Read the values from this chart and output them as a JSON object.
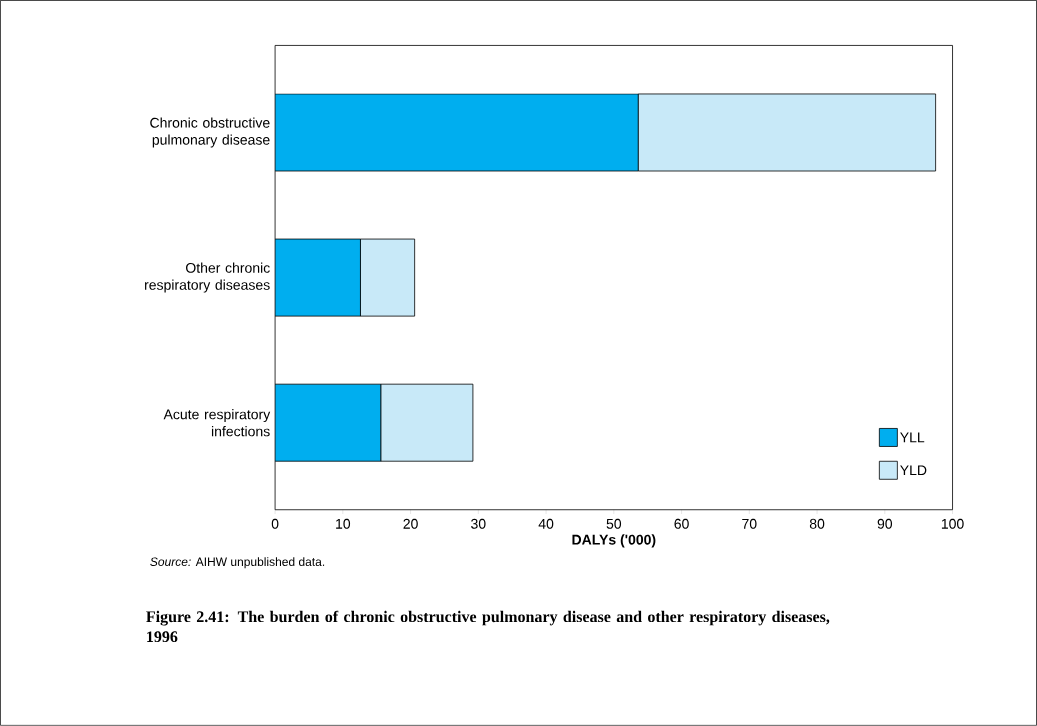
{
  "chart_data": {
    "type": "bar",
    "orientation": "horizontal",
    "stacked": true,
    "title": "Figure 2.41: The burden of chronic obstructive pulmonary disease and other respiratory diseases, 1996",
    "xlabel": "DALYs ('000)",
    "annotations": [
      "*Source:* AIHW unpublished data."
    ],
    "categories": [
      "Chronic obstructive pulmonary disease",
      "Other chronic respiratory diseases",
      "Acute respiratory infections"
    ],
    "series": [
      {
        "name": "YLL",
        "color": "#00aeef",
        "values": [
          53.6,
          12.6,
          15.6
        ]
      },
      {
        "name": "YLD",
        "color": "#c8e9f8",
        "values": [
          43.9,
          8.0,
          13.6
        ]
      }
    ],
    "xlim": [
      0,
      100
    ],
    "xticks": [
      0,
      10,
      20,
      30,
      40,
      50,
      60,
      70,
      80,
      90,
      100
    ],
    "legend": "bottom right",
    "grid": false
  }
}
